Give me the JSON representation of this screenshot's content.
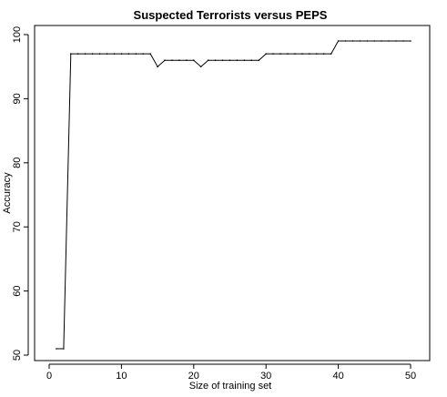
{
  "chart_data": {
    "type": "line",
    "title": "Suspected Terrorists versus PEPS",
    "xlabel": "Size of training set",
    "ylabel": "Accuracy",
    "xlim": [
      0,
      50
    ],
    "ylim": [
      50,
      100
    ],
    "xticks": [
      0,
      10,
      20,
      30,
      40,
      50
    ],
    "yticks": [
      50,
      60,
      70,
      80,
      90,
      100
    ],
    "grid": false,
    "series": [
      {
        "x": [
          1,
          2,
          3,
          4,
          5,
          6,
          7,
          8,
          9,
          10,
          11,
          12,
          13,
          14,
          15,
          16,
          17,
          18,
          19,
          20,
          21,
          22,
          23,
          24,
          25,
          26,
          27,
          28,
          29,
          30,
          31,
          32,
          33,
          34,
          35,
          36,
          37,
          38,
          39,
          40,
          41,
          42,
          43,
          44,
          45,
          46,
          47,
          48,
          49,
          50
        ],
        "y": [
          51,
          51,
          97,
          97,
          97,
          97,
          97,
          97,
          97,
          97,
          97,
          97,
          97,
          97,
          95,
          96,
          96,
          96,
          96,
          96,
          95,
          96,
          96,
          96,
          96,
          96,
          96,
          96,
          96,
          97,
          97,
          97,
          97,
          97,
          97,
          97,
          97,
          97,
          97,
          99,
          99,
          99,
          99,
          99,
          99,
          99,
          99,
          99,
          99,
          99
        ]
      }
    ]
  }
}
